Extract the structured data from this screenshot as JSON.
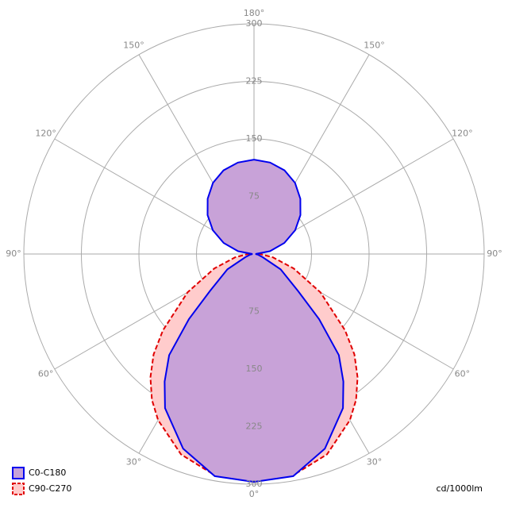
{
  "chart_data": {
    "type": "polar-line",
    "unit_label": "cd/1000lm",
    "rlim": [
      0,
      300
    ],
    "rticks": [
      75,
      150,
      225,
      300
    ],
    "angle_ticks": [
      {
        "value": 0,
        "label": "0°"
      },
      {
        "value": 30,
        "label": "30°"
      },
      {
        "value": 60,
        "label": "60°"
      },
      {
        "value": 90,
        "label": "90°"
      },
      {
        "value": 120,
        "label": "120°"
      },
      {
        "value": 150,
        "label": "150°"
      },
      {
        "value": 180,
        "label": "180°"
      }
    ],
    "grid": true,
    "legend": "bottom-left",
    "angles": [
      0,
      10,
      20,
      30,
      35,
      40,
      45,
      50,
      60,
      70,
      80,
      90,
      100,
      110,
      120,
      130,
      140,
      150,
      160,
      170,
      180
    ],
    "series": [
      {
        "name": "C90-C270",
        "color": "#e00000",
        "fill": "#ffcccc",
        "dashed": true,
        "values": [
          297,
          293,
          278,
          250,
          232,
          210,
          185,
          155,
          100,
          55,
          25,
          8,
          0,
          0,
          0,
          0,
          0,
          0,
          0,
          0,
          0
        ]
      },
      {
        "name": "C0-C180",
        "color": "#0000ee",
        "fill": "#c8a2d8",
        "dashed": false,
        "values": [
          297,
          294,
          270,
          232,
          203,
          172,
          120,
          75,
          40,
          12,
          5,
          2,
          21,
          42,
          62,
          79,
          94,
          107,
          116,
          121,
          123
        ]
      }
    ]
  }
}
